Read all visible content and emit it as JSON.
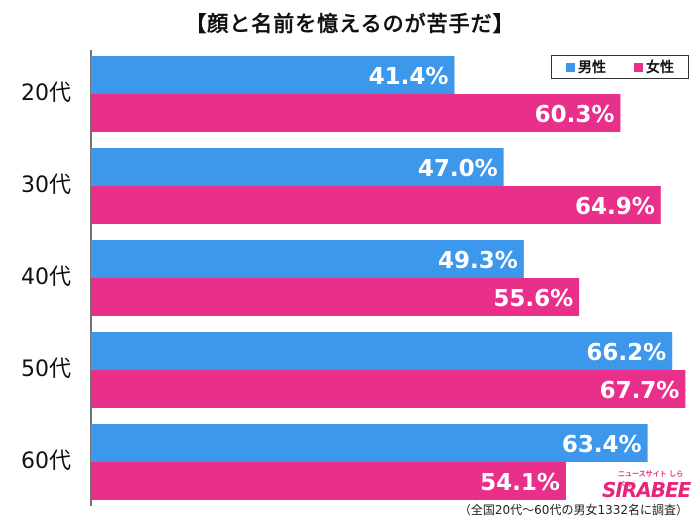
{
  "title": "【顔と名前を憶えるのが苦手だ】",
  "legend": [
    {
      "label": "男性",
      "color": "#3d97ea"
    },
    {
      "label": "女性",
      "color": "#e8308a"
    }
  ],
  "source": "（全国20代～60代の男女1332名に調査）",
  "logo": {
    "main": "SIRABEE",
    "sub": "ニュースサイト しらべぇ"
  },
  "chart_data": {
    "type": "bar",
    "orientation": "horizontal",
    "title": "【顔と名前を憶えるのが苦手だ】",
    "categories": [
      "20代",
      "30代",
      "40代",
      "50代",
      "60代"
    ],
    "series": [
      {
        "name": "男性",
        "color": "#3d97ea",
        "values": [
          41.4,
          47.0,
          49.3,
          66.2,
          63.4
        ],
        "labels": [
          "41.4%",
          "47.0%",
          "49.3%",
          "66.2%",
          "63.4%"
        ]
      },
      {
        "name": "女性",
        "color": "#e8308a",
        "values": [
          60.3,
          64.9,
          55.6,
          67.7,
          54.1
        ],
        "labels": [
          "60.3%",
          "64.9%",
          "55.6%",
          "67.7%",
          "54.1%"
        ]
      }
    ],
    "xlim": [
      0,
      68
    ],
    "legend_position": "top-right",
    "grid": false
  }
}
